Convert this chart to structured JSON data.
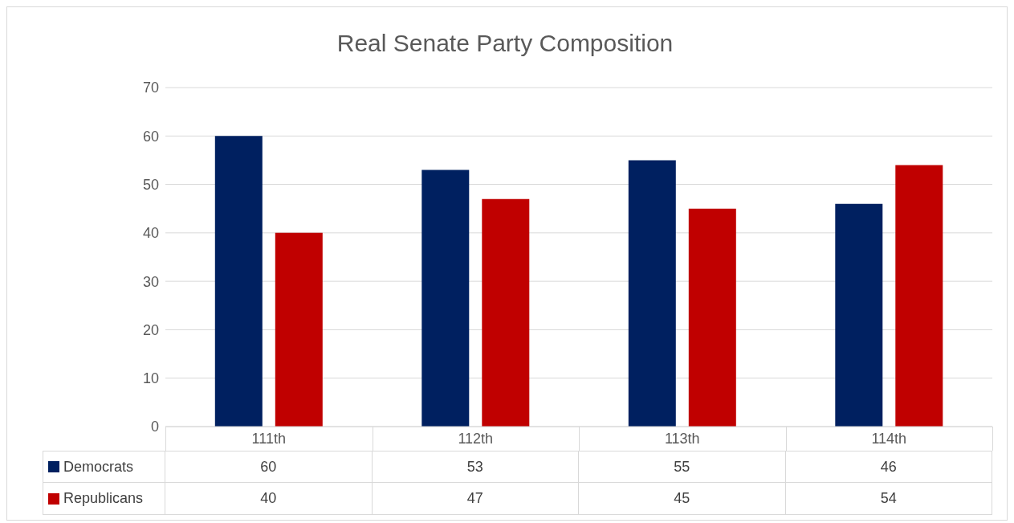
{
  "chart_data": {
    "type": "bar",
    "title": "Real Senate Party Composition",
    "categories": [
      "111th",
      "112th",
      "113th",
      "114th"
    ],
    "series": [
      {
        "name": "Democrats",
        "color": "#002060",
        "values": [
          60,
          53,
          55,
          46
        ]
      },
      {
        "name": "Republicans",
        "color": "#c00000",
        "values": [
          40,
          47,
          45,
          54
        ]
      }
    ],
    "ylim": [
      0,
      70
    ],
    "yticks": [
      0,
      10,
      20,
      30,
      40,
      50,
      60,
      70
    ],
    "grid": "y",
    "legend": "bottom",
    "data_labels": true
  }
}
